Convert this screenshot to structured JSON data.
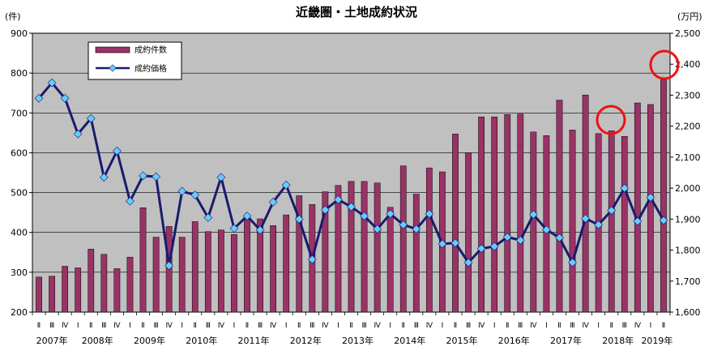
{
  "chart_data": {
    "type": "bar+line",
    "title": "近畿圏・土地成約状況",
    "left_axis_unit": "(件)",
    "right_axis_unit": "(万円)",
    "ylim_left": [
      200,
      900
    ],
    "yticks_left": [
      "200",
      "300",
      "400",
      "500",
      "600",
      "700",
      "800",
      "900"
    ],
    "ylim_right": [
      1600,
      2500
    ],
    "yticks_right": [
      "1,600",
      "1,700",
      "1,800",
      "1,900",
      "2,000",
      "2,100",
      "2,200",
      "2,300",
      "2,400",
      "2,500"
    ],
    "quarter_labels": [
      "Ⅱ",
      "Ⅲ",
      "Ⅳ",
      "Ⅰ",
      "Ⅱ",
      "Ⅲ",
      "Ⅳ",
      "Ⅰ",
      "Ⅱ",
      "Ⅲ",
      "Ⅳ",
      "Ⅰ",
      "Ⅱ",
      "Ⅲ",
      "Ⅳ",
      "Ⅰ",
      "Ⅱ",
      "Ⅲ",
      "Ⅳ",
      "Ⅰ",
      "Ⅱ",
      "Ⅲ",
      "Ⅳ",
      "Ⅰ",
      "Ⅱ",
      "Ⅲ",
      "Ⅳ",
      "Ⅰ",
      "Ⅱ",
      "Ⅲ",
      "Ⅳ",
      "Ⅰ",
      "Ⅱ",
      "Ⅲ",
      "Ⅳ",
      "Ⅰ",
      "Ⅱ",
      "Ⅲ",
      "Ⅳ",
      "Ⅰ",
      "Ⅱ",
      "Ⅲ",
      "Ⅳ",
      "Ⅰ",
      "Ⅱ",
      "Ⅲ",
      "Ⅳ",
      "Ⅰ",
      "Ⅱ"
    ],
    "year_labels": [
      {
        "label": "2007年",
        "start": 0,
        "end": 2
      },
      {
        "label": "2008年",
        "start": 3,
        "end": 6
      },
      {
        "label": "2009年",
        "start": 7,
        "end": 10
      },
      {
        "label": "2010年",
        "start": 11,
        "end": 14
      },
      {
        "label": "2011年",
        "start": 15,
        "end": 18
      },
      {
        "label": "2012年",
        "start": 19,
        "end": 22
      },
      {
        "label": "2013年",
        "start": 23,
        "end": 26
      },
      {
        "label": "2014年",
        "start": 27,
        "end": 30
      },
      {
        "label": "2015年",
        "start": 31,
        "end": 34
      },
      {
        "label": "2016年",
        "start": 35,
        "end": 38
      },
      {
        "label": "2017年",
        "start": 39,
        "end": 42
      },
      {
        "label": "2018年",
        "start": 43,
        "end": 46
      },
      {
        "label": "2019年",
        "start": 47,
        "end": 48
      }
    ],
    "series": [
      {
        "name": "成約件数",
        "type": "bar",
        "axis": "left",
        "color": "#993366",
        "values": [
          288,
          290,
          315,
          311,
          358,
          345,
          309,
          338,
          462,
          388,
          415,
          388,
          427,
          402,
          406,
          395,
          435,
          434,
          417,
          444,
          492,
          470,
          502,
          518,
          528,
          528,
          524,
          463,
          567,
          496,
          562,
          552,
          647,
          600,
          690,
          690,
          696,
          697,
          652,
          643,
          732,
          657,
          745,
          648,
          655,
          641,
          725,
          721,
          783
        ]
      },
      {
        "name": "成約価格",
        "type": "line",
        "axis": "right",
        "color": "#1a1a6e",
        "marker_color": "#66ccff",
        "values": [
          2290,
          2340,
          2290,
          2175,
          2225,
          2035,
          2120,
          1958,
          2040,
          2037,
          1750,
          1990,
          1978,
          1905,
          2035,
          1870,
          1910,
          1865,
          1955,
          2010,
          1900,
          1770,
          1930,
          1963,
          1940,
          1910,
          1868,
          1917,
          1882,
          1868,
          1917,
          1820,
          1823,
          1760,
          1805,
          1812,
          1842,
          1832,
          1915,
          1866,
          1840,
          1760,
          1902,
          1882,
          1928,
          2000,
          1893,
          1970,
          1896
        ]
      }
    ],
    "annotations": [
      "red-circle-2018-II-bar",
      "red-circle-2019-II-bar"
    ]
  }
}
